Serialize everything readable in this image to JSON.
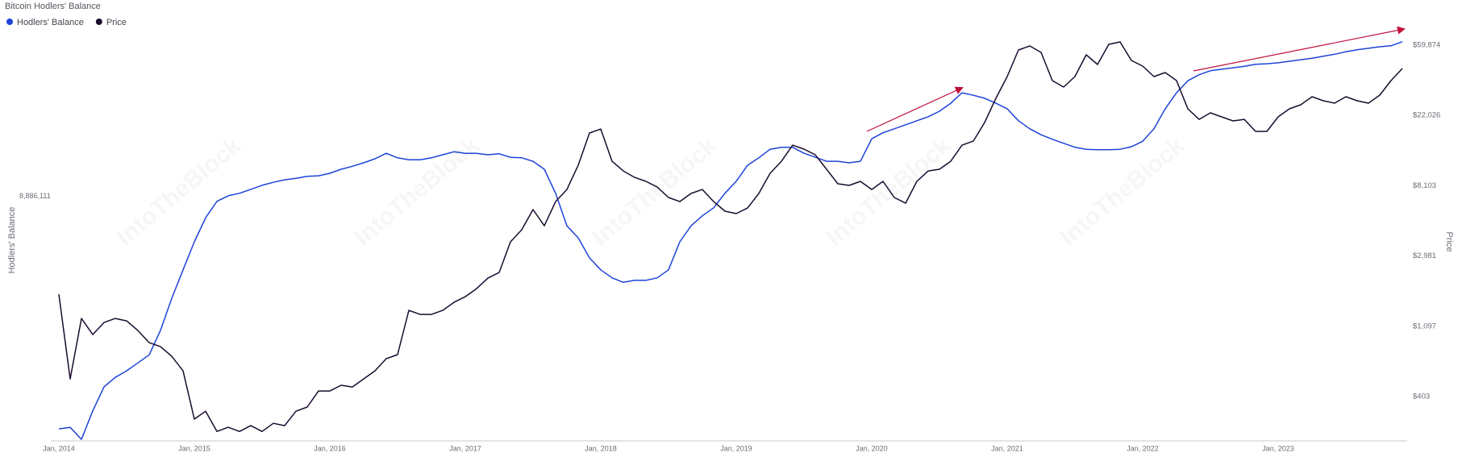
{
  "chart_data": {
    "type": "line",
    "title": "Bitcoin Hodlers' Balance",
    "watermark": "IntoTheBlock",
    "y_label": "Hodlers' Balance",
    "y2_label": "Price",
    "legend": "top-left",
    "grid": false,
    "x": [
      "2014-01",
      "2014-02",
      "2014-03",
      "2014-04",
      "2014-05",
      "2014-06",
      "2014-07",
      "2014-08",
      "2014-09",
      "2014-10",
      "2014-11",
      "2014-12",
      "2015-01",
      "2015-02",
      "2015-03",
      "2015-04",
      "2015-05",
      "2015-06",
      "2015-07",
      "2015-08",
      "2015-09",
      "2015-10",
      "2015-11",
      "2015-12",
      "2016-01",
      "2016-02",
      "2016-03",
      "2016-04",
      "2016-05",
      "2016-06",
      "2016-07",
      "2016-08",
      "2016-09",
      "2016-10",
      "2016-11",
      "2016-12",
      "2017-01",
      "2017-02",
      "2017-03",
      "2017-04",
      "2017-05",
      "2017-06",
      "2017-07",
      "2017-08",
      "2017-09",
      "2017-10",
      "2017-11",
      "2017-12",
      "2018-01",
      "2018-02",
      "2018-03",
      "2018-04",
      "2018-05",
      "2018-06",
      "2018-07",
      "2018-08",
      "2018-09",
      "2018-10",
      "2018-11",
      "2018-12",
      "2019-01",
      "2019-02",
      "2019-03",
      "2019-04",
      "2019-05",
      "2019-06",
      "2019-07",
      "2019-08",
      "2019-09",
      "2019-10",
      "2019-11",
      "2019-12",
      "2020-01",
      "2020-02",
      "2020-03",
      "2020-04",
      "2020-05",
      "2020-06",
      "2020-07",
      "2020-08",
      "2020-09",
      "2020-10",
      "2020-11",
      "2020-12",
      "2021-01",
      "2021-02",
      "2021-03",
      "2021-04",
      "2021-05",
      "2021-06",
      "2021-07",
      "2021-08",
      "2021-09",
      "2021-10",
      "2021-11",
      "2021-12",
      "2022-01",
      "2022-02",
      "2022-03",
      "2022-04",
      "2022-05",
      "2022-06",
      "2022-07",
      "2022-08",
      "2022-09",
      "2022-10",
      "2022-11",
      "2022-12",
      "2023-01",
      "2023-02",
      "2023-03",
      "2023-04",
      "2023-05",
      "2023-06",
      "2023-07",
      "2023-08",
      "2023-09",
      "2023-10",
      "2023-11",
      "2023-12"
    ],
    "xlim": [
      "2014-01",
      "2023-12"
    ],
    "xticks": [
      {
        "value": "2014-01",
        "label": "Jan, 2014"
      },
      {
        "value": "2015-01",
        "label": "Jan, 2015"
      },
      {
        "value": "2016-01",
        "label": "Jan, 2016"
      },
      {
        "value": "2017-01",
        "label": "Jan, 2017"
      },
      {
        "value": "2018-01",
        "label": "Jan, 2018"
      },
      {
        "value": "2019-01",
        "label": "Jan, 2019"
      },
      {
        "value": "2020-01",
        "label": "Jan, 2020"
      },
      {
        "value": "2021-01",
        "label": "Jan, 2021"
      },
      {
        "value": "2022-01",
        "label": "Jan, 2022"
      },
      {
        "value": "2023-01",
        "label": "Jan, 2023"
      }
    ],
    "ylim": [
      4000000,
      12170000
    ],
    "yticks": [
      {
        "value": 8886111,
        "label": "8,886,111"
      }
    ],
    "y2lim": [
      215,
      71930
    ],
    "y2scale": "log",
    "y2ticks": [
      {
        "value": 403,
        "label": "$403"
      },
      {
        "value": 1097,
        "label": "$1,097"
      },
      {
        "value": 2981,
        "label": "$2,981"
      },
      {
        "value": 8103,
        "label": "$8,103"
      },
      {
        "value": 22026,
        "label": "$22,026"
      },
      {
        "value": 59874,
        "label": "$59,874"
      }
    ],
    "series": [
      {
        "name": "Hodlers' Balance",
        "color": "#1d43d8",
        "axis": "y",
        "values": [
          4240000,
          4270000,
          4030000,
          4600000,
          5080000,
          5270000,
          5400000,
          5560000,
          5720000,
          6210000,
          6850000,
          7420000,
          7980000,
          8460000,
          8790000,
          8900000,
          8950000,
          9030000,
          9110000,
          9170000,
          9220000,
          9250000,
          9290000,
          9300000,
          9350000,
          9430000,
          9490000,
          9560000,
          9640000,
          9750000,
          9660000,
          9620000,
          9620000,
          9660000,
          9720000,
          9780000,
          9750000,
          9750000,
          9720000,
          9740000,
          9670000,
          9660000,
          9590000,
          9430000,
          8950000,
          8300000,
          8060000,
          7660000,
          7420000,
          7260000,
          7170000,
          7210000,
          7210000,
          7260000,
          7420000,
          7980000,
          8300000,
          8500000,
          8660000,
          8950000,
          9190000,
          9510000,
          9660000,
          9830000,
          9870000,
          9870000,
          9750000,
          9670000,
          9590000,
          9590000,
          9560000,
          9590000,
          10040000,
          10160000,
          10240000,
          10320000,
          10400000,
          10480000,
          10590000,
          10750000,
          10960000,
          10910000,
          10850000,
          10750000,
          10640000,
          10400000,
          10240000,
          10120000,
          10030000,
          9950000,
          9870000,
          9830000,
          9820000,
          9820000,
          9830000,
          9880000,
          9990000,
          10240000,
          10640000,
          10960000,
          11200000,
          11320000,
          11400000,
          11430000,
          11460000,
          11490000,
          11530000,
          11540000,
          11560000,
          11590000,
          11620000,
          11650000,
          11690000,
          11730000,
          11780000,
          11820000,
          11850000,
          11880000,
          11900000,
          11980000
        ]
      },
      {
        "name": "Price",
        "color": "#1a0b2e",
        "axis": "y2",
        "values": [
          1730,
          519,
          1227,
          975,
          1159,
          1227,
          1186,
          1033,
          870,
          821,
          716,
          582,
          293,
          328,
          246,
          261,
          246,
          267,
          246,
          276,
          267,
          328,
          348,
          437,
          437,
          474,
          463,
          519,
          582,
          692,
          733,
          1376,
          1299,
          1299,
          1376,
          1543,
          1672,
          1876,
          2177,
          2359,
          3648,
          4333,
          5772,
          4587,
          6471,
          7685,
          10840,
          17150,
          18150,
          11480,
          10000,
          9126,
          8620,
          7955,
          6856,
          6471,
          7258,
          7685,
          6471,
          5640,
          5450,
          5902,
          7258,
          9670,
          11480,
          14440,
          13640,
          12580,
          10240,
          8330,
          8140,
          8620,
          7685,
          8620,
          6856,
          6325,
          8620,
          10000,
          10240,
          11480,
          14440,
          15290,
          19910,
          28080,
          38280,
          55870,
          59220,
          54020,
          36150,
          33000,
          38280,
          52160,
          45460,
          60550,
          62690,
          48160,
          44450,
          38280,
          40540,
          36150,
          24200,
          20840,
          22850,
          21570,
          20370,
          20840,
          17550,
          17550,
          21570,
          24200,
          25630,
          28740,
          27150,
          26220,
          28740,
          27150,
          26220,
          29410,
          36150,
          42920
        ]
      }
    ]
  }
}
